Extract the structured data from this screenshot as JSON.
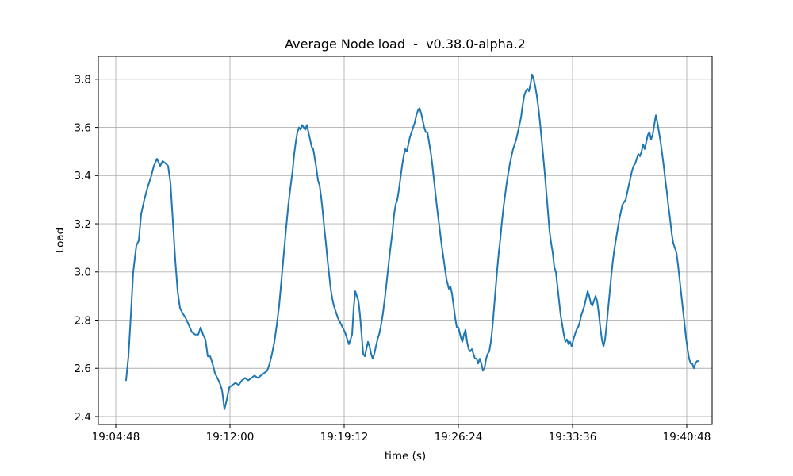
{
  "figure": {
    "background": "#ffffff"
  },
  "chart_data": {
    "type": "line",
    "title": "Average Node load  -  v0.38.0-alpha.2",
    "xlabel": "time (s)",
    "ylabel": "Load",
    "grid": true,
    "legend_visible": false,
    "line_color": "#1f77b4",
    "grid_color": "#b0b0b0",
    "spine_color": "#000000",
    "x_tick_labels": [
      "19:04:48",
      "19:12:00",
      "19:19:12",
      "19:26:24",
      "19:33:36",
      "19:40:48"
    ],
    "x_tick_elapsed_s": [
      0,
      432,
      864,
      1296,
      1728,
      2160
    ],
    "y_tick_labels": [
      "2.4",
      "2.6",
      "2.8",
      "3.0",
      "3.2",
      "3.4",
      "3.6",
      "3.8"
    ],
    "y_tick_values": [
      2.4,
      2.6,
      2.8,
      3.0,
      3.2,
      3.4,
      3.6,
      3.8
    ],
    "x_time_origin_label": "19:04:48",
    "xlim_elapsed_s": [
      -66,
      2256
    ],
    "ylim": [
      2.367,
      3.895
    ],
    "series": [
      {
        "name": "Average Node load",
        "points": [
          [
            39,
            2.55
          ],
          [
            48,
            2.65
          ],
          [
            57,
            2.82
          ],
          [
            66,
            3.0
          ],
          [
            78,
            3.11
          ],
          [
            87,
            3.13
          ],
          [
            96,
            3.24
          ],
          [
            108,
            3.3
          ],
          [
            120,
            3.35
          ],
          [
            132,
            3.39
          ],
          [
            144,
            3.44
          ],
          [
            156,
            3.47
          ],
          [
            168,
            3.44
          ],
          [
            177,
            3.46
          ],
          [
            189,
            3.45
          ],
          [
            198,
            3.44
          ],
          [
            207,
            3.37
          ],
          [
            216,
            3.21
          ],
          [
            225,
            3.05
          ],
          [
            234,
            2.92
          ],
          [
            243,
            2.85
          ],
          [
            252,
            2.83
          ],
          [
            264,
            2.81
          ],
          [
            276,
            2.78
          ],
          [
            288,
            2.75
          ],
          [
            300,
            2.74
          ],
          [
            312,
            2.74
          ],
          [
            321,
            2.77
          ],
          [
            330,
            2.74
          ],
          [
            339,
            2.72
          ],
          [
            348,
            2.65
          ],
          [
            357,
            2.65
          ],
          [
            366,
            2.62
          ],
          [
            375,
            2.58
          ],
          [
            384,
            2.56
          ],
          [
            393,
            2.54
          ],
          [
            402,
            2.51
          ],
          [
            411,
            2.43
          ],
          [
            420,
            2.47
          ],
          [
            429,
            2.52
          ],
          [
            441,
            2.53
          ],
          [
            453,
            2.54
          ],
          [
            465,
            2.53
          ],
          [
            477,
            2.55
          ],
          [
            489,
            2.56
          ],
          [
            501,
            2.55
          ],
          [
            513,
            2.56
          ],
          [
            525,
            2.57
          ],
          [
            537,
            2.56
          ],
          [
            549,
            2.57
          ],
          [
            561,
            2.58
          ],
          [
            573,
            2.59
          ],
          [
            582,
            2.62
          ],
          [
            591,
            2.66
          ],
          [
            600,
            2.71
          ],
          [
            609,
            2.78
          ],
          [
            618,
            2.86
          ],
          [
            627,
            2.97
          ],
          [
            636,
            3.08
          ],
          [
            645,
            3.19
          ],
          [
            654,
            3.29
          ],
          [
            663,
            3.37
          ],
          [
            669,
            3.42
          ],
          [
            675,
            3.49
          ],
          [
            681,
            3.54
          ],
          [
            687,
            3.58
          ],
          [
            693,
            3.6
          ],
          [
            699,
            3.59
          ],
          [
            705,
            3.61
          ],
          [
            711,
            3.6
          ],
          [
            717,
            3.59
          ],
          [
            723,
            3.61
          ],
          [
            729,
            3.58
          ],
          [
            735,
            3.55
          ],
          [
            741,
            3.52
          ],
          [
            747,
            3.51
          ],
          [
            753,
            3.47
          ],
          [
            759,
            3.43
          ],
          [
            765,
            3.38
          ],
          [
            771,
            3.36
          ],
          [
            777,
            3.31
          ],
          [
            783,
            3.25
          ],
          [
            789,
            3.18
          ],
          [
            795,
            3.12
          ],
          [
            801,
            3.05
          ],
          [
            807,
            2.99
          ],
          [
            813,
            2.93
          ],
          [
            819,
            2.89
          ],
          [
            825,
            2.86
          ],
          [
            831,
            2.84
          ],
          [
            840,
            2.81
          ],
          [
            849,
            2.79
          ],
          [
            858,
            2.77
          ],
          [
            867,
            2.75
          ],
          [
            876,
            2.72
          ],
          [
            882,
            2.7
          ],
          [
            888,
            2.72
          ],
          [
            894,
            2.74
          ],
          [
            900,
            2.85
          ],
          [
            906,
            2.92
          ],
          [
            912,
            2.9
          ],
          [
            918,
            2.88
          ],
          [
            924,
            2.82
          ],
          [
            930,
            2.74
          ],
          [
            936,
            2.66
          ],
          [
            942,
            2.65
          ],
          [
            948,
            2.68
          ],
          [
            954,
            2.71
          ],
          [
            960,
            2.69
          ],
          [
            966,
            2.66
          ],
          [
            972,
            2.64
          ],
          [
            978,
            2.66
          ],
          [
            984,
            2.69
          ],
          [
            990,
            2.72
          ],
          [
            996,
            2.74
          ],
          [
            1002,
            2.77
          ],
          [
            1011,
            2.83
          ],
          [
            1020,
            2.91
          ],
          [
            1029,
            3.0
          ],
          [
            1038,
            3.09
          ],
          [
            1047,
            3.17
          ],
          [
            1053,
            3.24
          ],
          [
            1059,
            3.28
          ],
          [
            1065,
            3.3
          ],
          [
            1071,
            3.34
          ],
          [
            1077,
            3.39
          ],
          [
            1083,
            3.44
          ],
          [
            1089,
            3.48
          ],
          [
            1095,
            3.51
          ],
          [
            1101,
            3.5
          ],
          [
            1107,
            3.53
          ],
          [
            1113,
            3.56
          ],
          [
            1119,
            3.58
          ],
          [
            1125,
            3.6
          ],
          [
            1131,
            3.62
          ],
          [
            1137,
            3.65
          ],
          [
            1143,
            3.67
          ],
          [
            1149,
            3.68
          ],
          [
            1155,
            3.66
          ],
          [
            1161,
            3.63
          ],
          [
            1167,
            3.6
          ],
          [
            1173,
            3.58
          ],
          [
            1179,
            3.58
          ],
          [
            1185,
            3.54
          ],
          [
            1191,
            3.5
          ],
          [
            1197,
            3.45
          ],
          [
            1203,
            3.39
          ],
          [
            1209,
            3.33
          ],
          [
            1215,
            3.27
          ],
          [
            1224,
            3.19
          ],
          [
            1233,
            3.11
          ],
          [
            1242,
            3.04
          ],
          [
            1251,
            2.97
          ],
          [
            1260,
            2.93
          ],
          [
            1266,
            2.94
          ],
          [
            1272,
            2.91
          ],
          [
            1278,
            2.86
          ],
          [
            1284,
            2.81
          ],
          [
            1290,
            2.77
          ],
          [
            1296,
            2.77
          ],
          [
            1305,
            2.73
          ],
          [
            1311,
            2.71
          ],
          [
            1317,
            2.74
          ],
          [
            1323,
            2.76
          ],
          [
            1329,
            2.71
          ],
          [
            1335,
            2.68
          ],
          [
            1341,
            2.67
          ],
          [
            1347,
            2.68
          ],
          [
            1353,
            2.66
          ],
          [
            1359,
            2.64
          ],
          [
            1365,
            2.64
          ],
          [
            1371,
            2.62
          ],
          [
            1377,
            2.64
          ],
          [
            1383,
            2.62
          ],
          [
            1389,
            2.59
          ],
          [
            1395,
            2.6
          ],
          [
            1401,
            2.64
          ],
          [
            1407,
            2.66
          ],
          [
            1413,
            2.67
          ],
          [
            1419,
            2.71
          ],
          [
            1425,
            2.77
          ],
          [
            1431,
            2.85
          ],
          [
            1437,
            2.93
          ],
          [
            1443,
            3.01
          ],
          [
            1449,
            3.08
          ],
          [
            1455,
            3.14
          ],
          [
            1461,
            3.21
          ],
          [
            1467,
            3.27
          ],
          [
            1473,
            3.32
          ],
          [
            1479,
            3.37
          ],
          [
            1485,
            3.41
          ],
          [
            1491,
            3.45
          ],
          [
            1497,
            3.48
          ],
          [
            1503,
            3.51
          ],
          [
            1509,
            3.53
          ],
          [
            1515,
            3.55
          ],
          [
            1521,
            3.58
          ],
          [
            1527,
            3.61
          ],
          [
            1533,
            3.64
          ],
          [
            1539,
            3.69
          ],
          [
            1545,
            3.73
          ],
          [
            1551,
            3.75
          ],
          [
            1557,
            3.76
          ],
          [
            1563,
            3.75
          ],
          [
            1569,
            3.78
          ],
          [
            1575,
            3.82
          ],
          [
            1581,
            3.8
          ],
          [
            1587,
            3.77
          ],
          [
            1593,
            3.73
          ],
          [
            1599,
            3.68
          ],
          [
            1605,
            3.62
          ],
          [
            1611,
            3.55
          ],
          [
            1617,
            3.48
          ],
          [
            1623,
            3.41
          ],
          [
            1629,
            3.33
          ],
          [
            1635,
            3.25
          ],
          [
            1641,
            3.17
          ],
          [
            1647,
            3.12
          ],
          [
            1653,
            3.08
          ],
          [
            1659,
            3.02
          ],
          [
            1665,
            3.0
          ],
          [
            1671,
            2.94
          ],
          [
            1677,
            2.88
          ],
          [
            1683,
            2.82
          ],
          [
            1689,
            2.78
          ],
          [
            1695,
            2.74
          ],
          [
            1701,
            2.71
          ],
          [
            1707,
            2.72
          ],
          [
            1713,
            2.7
          ],
          [
            1719,
            2.71
          ],
          [
            1725,
            2.69
          ],
          [
            1731,
            2.72
          ],
          [
            1737,
            2.74
          ],
          [
            1743,
            2.76
          ],
          [
            1749,
            2.77
          ],
          [
            1755,
            2.79
          ],
          [
            1761,
            2.82
          ],
          [
            1767,
            2.84
          ],
          [
            1773,
            2.86
          ],
          [
            1779,
            2.89
          ],
          [
            1785,
            2.92
          ],
          [
            1791,
            2.9
          ],
          [
            1797,
            2.87
          ],
          [
            1803,
            2.86
          ],
          [
            1809,
            2.88
          ],
          [
            1815,
            2.9
          ],
          [
            1821,
            2.88
          ],
          [
            1827,
            2.83
          ],
          [
            1833,
            2.77
          ],
          [
            1839,
            2.72
          ],
          [
            1845,
            2.69
          ],
          [
            1851,
            2.72
          ],
          [
            1857,
            2.78
          ],
          [
            1863,
            2.85
          ],
          [
            1869,
            2.92
          ],
          [
            1875,
            2.99
          ],
          [
            1881,
            3.05
          ],
          [
            1887,
            3.1
          ],
          [
            1893,
            3.14
          ],
          [
            1899,
            3.18
          ],
          [
            1905,
            3.22
          ],
          [
            1911,
            3.25
          ],
          [
            1917,
            3.28
          ],
          [
            1923,
            3.29
          ],
          [
            1929,
            3.3
          ],
          [
            1935,
            3.33
          ],
          [
            1941,
            3.36
          ],
          [
            1947,
            3.39
          ],
          [
            1953,
            3.42
          ],
          [
            1959,
            3.44
          ],
          [
            1965,
            3.45
          ],
          [
            1971,
            3.47
          ],
          [
            1977,
            3.49
          ],
          [
            1983,
            3.48
          ],
          [
            1989,
            3.5
          ],
          [
            1995,
            3.53
          ],
          [
            2001,
            3.51
          ],
          [
            2007,
            3.54
          ],
          [
            2013,
            3.57
          ],
          [
            2019,
            3.58
          ],
          [
            2025,
            3.55
          ],
          [
            2031,
            3.57
          ],
          [
            2037,
            3.61
          ],
          [
            2043,
            3.65
          ],
          [
            2049,
            3.62
          ],
          [
            2055,
            3.58
          ],
          [
            2061,
            3.54
          ],
          [
            2067,
            3.49
          ],
          [
            2073,
            3.44
          ],
          [
            2079,
            3.38
          ],
          [
            2085,
            3.33
          ],
          [
            2091,
            3.27
          ],
          [
            2097,
            3.22
          ],
          [
            2103,
            3.16
          ],
          [
            2109,
            3.12
          ],
          [
            2115,
            3.1
          ],
          [
            2121,
            3.08
          ],
          [
            2127,
            3.03
          ],
          [
            2133,
            2.97
          ],
          [
            2139,
            2.91
          ],
          [
            2145,
            2.85
          ],
          [
            2151,
            2.79
          ],
          [
            2157,
            2.73
          ],
          [
            2163,
            2.68
          ],
          [
            2169,
            2.64
          ],
          [
            2175,
            2.62
          ],
          [
            2181,
            2.62
          ],
          [
            2187,
            2.6
          ],
          [
            2193,
            2.62
          ],
          [
            2199,
            2.63
          ],
          [
            2205,
            2.63
          ]
        ]
      }
    ]
  }
}
